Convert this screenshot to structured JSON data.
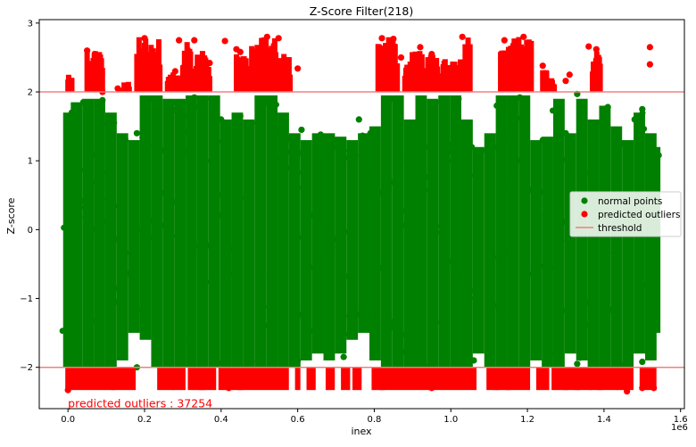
{
  "chart_data": {
    "type": "scatter",
    "title": "Z-Score Filter(218)",
    "xlabel": "inex",
    "ylabel": "Z-score",
    "x_offset_label": "1e6",
    "xlim": [
      -0.075,
      1.61
    ],
    "ylim": [
      -2.6,
      3.05
    ],
    "x_ticks": [
      {
        "value": 0.0,
        "label": "0.0"
      },
      {
        "value": 0.2,
        "label": "0.2"
      },
      {
        "value": 0.4,
        "label": "0.4"
      },
      {
        "value": 0.6,
        "label": "0.6"
      },
      {
        "value": 0.8,
        "label": "0.8"
      },
      {
        "value": 1.0,
        "label": "1.0"
      },
      {
        "value": 1.2,
        "label": "1.2"
      },
      {
        "value": 1.4,
        "label": "1.4"
      },
      {
        "value": 1.6,
        "label": "1.6"
      }
    ],
    "y_ticks": [
      {
        "value": -2,
        "label": "−2"
      },
      {
        "value": -1,
        "label": "−1"
      },
      {
        "value": 0,
        "label": "0"
      },
      {
        "value": 1,
        "label": "1"
      },
      {
        "value": 2,
        "label": "2"
      },
      {
        "value": 3,
        "label": "3"
      }
    ],
    "thresholds": [
      2,
      -2
    ],
    "legend_position": "center-right",
    "grid": false,
    "series": [
      {
        "name": "normal points",
        "color": "#008000",
        "marker": "circle",
        "dense_band": [
          [
            0.0,
            -2.0,
            1.7
          ],
          [
            0.02,
            -2.0,
            1.85
          ],
          [
            0.05,
            -2.0,
            1.9
          ],
          [
            0.08,
            -2.0,
            1.9
          ],
          [
            0.11,
            -2.0,
            1.7
          ],
          [
            0.14,
            -1.9,
            1.4
          ],
          [
            0.17,
            -1.5,
            1.3
          ],
          [
            0.2,
            -1.6,
            1.95
          ],
          [
            0.23,
            -2.0,
            1.95
          ],
          [
            0.26,
            -2.0,
            1.9
          ],
          [
            0.29,
            -2.0,
            1.9
          ],
          [
            0.32,
            -2.0,
            1.95
          ],
          [
            0.35,
            -2.0,
            1.95
          ],
          [
            0.38,
            -2.0,
            1.95
          ],
          [
            0.41,
            -2.0,
            1.6
          ],
          [
            0.44,
            -2.0,
            1.7
          ],
          [
            0.47,
            -2.0,
            1.6
          ],
          [
            0.5,
            -2.0,
            1.95
          ],
          [
            0.53,
            -2.0,
            1.95
          ],
          [
            0.56,
            -2.0,
            1.7
          ],
          [
            0.59,
            -2.0,
            1.4
          ],
          [
            0.62,
            -1.9,
            1.3
          ],
          [
            0.65,
            -1.8,
            1.4
          ],
          [
            0.68,
            -1.9,
            1.4
          ],
          [
            0.71,
            -1.8,
            1.35
          ],
          [
            0.74,
            -1.6,
            1.3
          ],
          [
            0.77,
            -1.5,
            1.4
          ],
          [
            0.8,
            -1.9,
            1.5
          ],
          [
            0.83,
            -2.0,
            1.95
          ],
          [
            0.86,
            -2.0,
            1.95
          ],
          [
            0.89,
            -2.0,
            1.6
          ],
          [
            0.92,
            -2.0,
            1.95
          ],
          [
            0.95,
            -2.0,
            1.9
          ],
          [
            0.98,
            -2.0,
            1.95
          ],
          [
            1.01,
            -2.0,
            1.95
          ],
          [
            1.04,
            -2.0,
            1.6
          ],
          [
            1.07,
            -1.8,
            1.2
          ],
          [
            1.1,
            -2.0,
            1.4
          ],
          [
            1.13,
            -2.0,
            1.95
          ],
          [
            1.16,
            -2.0,
            1.95
          ],
          [
            1.19,
            -2.0,
            1.95
          ],
          [
            1.22,
            -1.9,
            1.3
          ],
          [
            1.25,
            -2.0,
            1.35
          ],
          [
            1.28,
            -2.0,
            1.9
          ],
          [
            1.31,
            -1.8,
            1.4
          ],
          [
            1.34,
            -1.9,
            1.9
          ],
          [
            1.37,
            -2.0,
            1.6
          ],
          [
            1.4,
            -2.0,
            1.8
          ],
          [
            1.43,
            -2.0,
            1.5
          ],
          [
            1.46,
            -2.0,
            1.3
          ],
          [
            1.49,
            -1.8,
            1.7
          ],
          [
            1.52,
            -1.9,
            1.4
          ],
          [
            1.53,
            -1.5,
            1.2
          ]
        ],
        "points": [
          [
            0.01,
            1.7
          ],
          [
            0.04,
            1.85
          ],
          [
            0.09,
            1.88
          ],
          [
            0.12,
            1.55
          ],
          [
            0.15,
            1.3
          ],
          [
            0.18,
            1.4
          ],
          [
            0.22,
            1.9
          ],
          [
            0.27,
            1.75
          ],
          [
            0.3,
            1.85
          ],
          [
            0.33,
            1.92
          ],
          [
            0.36,
            1.9
          ],
          [
            0.4,
            1.6
          ],
          [
            0.45,
            1.65
          ],
          [
            0.48,
            1.55
          ],
          [
            0.52,
            1.9
          ],
          [
            0.58,
            1.3
          ],
          [
            0.61,
            1.45
          ],
          [
            0.66,
            1.38
          ],
          [
            0.7,
            1.3
          ],
          [
            0.76,
            1.6
          ],
          [
            0.79,
            1.4
          ],
          [
            0.85,
            1.9
          ],
          [
            0.9,
            1.55
          ],
          [
            0.96,
            1.85
          ],
          [
            1.02,
            1.9
          ],
          [
            1.08,
            1.15
          ],
          [
            1.12,
            1.8
          ],
          [
            1.18,
            1.92
          ],
          [
            1.24,
            1.3
          ],
          [
            1.3,
            1.4
          ],
          [
            1.33,
            1.97
          ],
          [
            1.38,
            1.55
          ],
          [
            1.41,
            1.78
          ],
          [
            1.45,
            1.25
          ],
          [
            1.48,
            1.6
          ],
          [
            1.5,
            1.75
          ],
          [
            1.52,
            1.25
          ],
          [
            0.06,
            -2.0
          ],
          [
            0.6,
            -1.9
          ],
          [
            1.06,
            -1.9
          ],
          [
            1.5,
            -1.92
          ],
          [
            0.18,
            -2.0
          ],
          [
            0.72,
            -1.85
          ],
          [
            1.33,
            -1.95
          ]
        ]
      },
      {
        "name": "predicted outliers",
        "color": "#ff0000",
        "marker": "circle",
        "bands": [
          [
            0.0,
            0.115,
            0.0
          ],
          [
            0.12,
            0.17,
            0.0
          ],
          [
            0.24,
            0.27,
            0.0
          ],
          [
            0.28,
            0.3,
            0.0
          ],
          [
            0.32,
            0.35,
            0.0
          ],
          [
            0.35,
            0.38,
            0.0
          ],
          [
            0.4,
            0.45,
            0.0
          ],
          [
            0.45,
            0.57,
            0.0
          ],
          [
            0.6,
            0.6,
            0.0
          ],
          [
            0.63,
            0.64,
            0.0
          ],
          [
            0.68,
            0.69,
            0.0
          ],
          [
            0.72,
            0.73,
            0.0
          ],
          [
            0.75,
            0.76,
            0.0
          ],
          [
            0.8,
            0.82,
            0.0
          ],
          [
            0.82,
            1.06,
            0.0
          ],
          [
            1.1,
            1.12,
            0.0
          ],
          [
            1.12,
            1.15,
            0.0
          ],
          [
            1.15,
            1.2,
            0.0
          ],
          [
            1.23,
            1.25,
            0.0
          ],
          [
            1.27,
            1.3,
            0.0
          ],
          [
            1.3,
            1.33,
            0.0
          ],
          [
            1.33,
            1.36,
            0.0
          ],
          [
            1.37,
            1.39,
            0.0
          ],
          [
            1.39,
            1.43,
            0.0
          ],
          [
            1.44,
            1.47,
            0.0
          ],
          [
            1.5,
            1.53,
            0.0
          ]
        ],
        "upper_band_groups": [
          [
            0.0,
            0.01,
            2.0,
            2.25
          ],
          [
            0.05,
            0.09,
            2.0,
            2.6
          ],
          [
            0.14,
            0.16,
            2.0,
            2.15
          ],
          [
            0.18,
            0.24,
            2.0,
            2.8
          ],
          [
            0.26,
            0.29,
            2.0,
            2.3
          ],
          [
            0.3,
            0.32,
            2.0,
            2.75
          ],
          [
            0.33,
            0.37,
            2.0,
            2.6
          ],
          [
            0.44,
            0.47,
            2.0,
            2.6
          ],
          [
            0.48,
            0.54,
            2.0,
            2.8
          ],
          [
            0.54,
            0.58,
            2.0,
            2.6
          ],
          [
            0.81,
            0.86,
            2.0,
            2.8
          ],
          [
            0.88,
            0.93,
            2.0,
            2.6
          ],
          [
            0.94,
            0.97,
            2.0,
            2.55
          ],
          [
            0.98,
            1.01,
            2.0,
            2.5
          ],
          [
            1.02,
            1.05,
            2.0,
            2.8
          ],
          [
            1.13,
            1.21,
            2.0,
            2.8
          ],
          [
            1.24,
            1.25,
            2.0,
            2.35
          ],
          [
            1.26,
            1.27,
            2.0,
            2.2
          ],
          [
            1.37,
            1.39,
            2.0,
            2.62
          ]
        ],
        "points": [
          [
            0.05,
            2.6
          ],
          [
            0.07,
            2.55
          ],
          [
            0.09,
            2.0
          ],
          [
            0.13,
            2.05
          ],
          [
            0.19,
            2.5
          ],
          [
            0.2,
            2.78
          ],
          [
            0.22,
            2.45
          ],
          [
            0.28,
            2.3
          ],
          [
            0.29,
            2.75
          ],
          [
            0.32,
            2.28
          ],
          [
            0.33,
            2.75
          ],
          [
            0.37,
            2.42
          ],
          [
            0.41,
            2.74
          ],
          [
            0.44,
            2.62
          ],
          [
            0.45,
            2.58
          ],
          [
            0.52,
            2.8
          ],
          [
            0.55,
            2.78
          ],
          [
            0.57,
            2.3
          ],
          [
            0.6,
            2.34
          ],
          [
            0.82,
            2.78
          ],
          [
            0.85,
            2.77
          ],
          [
            0.87,
            2.5
          ],
          [
            0.92,
            2.65
          ],
          [
            0.95,
            2.55
          ],
          [
            1.0,
            2.3
          ],
          [
            1.03,
            2.8
          ],
          [
            1.14,
            2.75
          ],
          [
            1.16,
            2.6
          ],
          [
            1.19,
            2.8
          ],
          [
            1.24,
            2.38
          ],
          [
            1.3,
            2.16
          ],
          [
            1.31,
            2.25
          ],
          [
            1.36,
            2.66
          ],
          [
            1.38,
            2.62
          ],
          [
            1.38,
            2.45
          ],
          [
            1.52,
            2.65
          ],
          [
            1.52,
            2.4
          ],
          [
            0.0,
            -2.33
          ],
          [
            0.35,
            -2.25
          ],
          [
            0.42,
            -2.3
          ],
          [
            0.95,
            -2.3
          ],
          [
            1.46,
            -2.35
          ],
          [
            1.5,
            -2.3
          ],
          [
            1.53,
            -2.3
          ]
        ]
      },
      {
        "name": "threshold",
        "color": "#f08080",
        "marker": "line",
        "y_values": [
          2,
          -2
        ]
      }
    ],
    "annotation": {
      "text": "predicted outliers : 37254",
      "color": "#ff0000",
      "x": 0.0,
      "y": -2.58
    }
  }
}
